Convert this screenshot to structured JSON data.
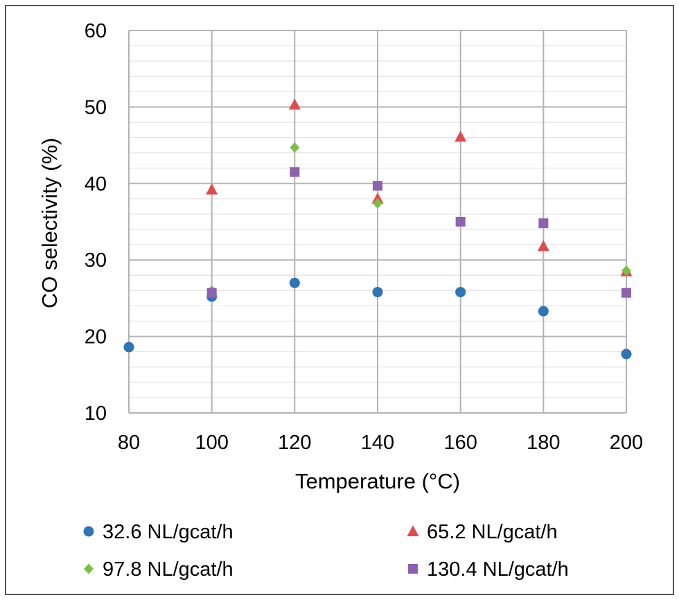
{
  "chart_data": {
    "type": "scatter",
    "title": "",
    "xlabel": "Temperature (°C)",
    "ylabel": "CO selectivity (%)",
    "xlim": [
      80,
      200
    ],
    "ylim": [
      10,
      60
    ],
    "xticks": [
      80,
      100,
      120,
      140,
      160,
      180,
      200
    ],
    "yticks": [
      10,
      20,
      30,
      40,
      50,
      60
    ],
    "x_minor_step": 20,
    "y_minor_step": 2,
    "grid": true,
    "legend_position": "bottom",
    "series": [
      {
        "name": "32.6 NL/gcat/h",
        "marker": "circle",
        "color": "#2E75B6",
        "points": [
          [
            80,
            18.6
          ],
          [
            100,
            25.2
          ],
          [
            120,
            27.0
          ],
          [
            140,
            25.8
          ],
          [
            160,
            25.8
          ],
          [
            180,
            23.3
          ],
          [
            200,
            17.7
          ]
        ]
      },
      {
        "name": "65.2 NL/gcat/h",
        "marker": "triangle",
        "color": "#E04B4B",
        "points": [
          [
            100,
            39.2
          ],
          [
            120,
            50.3
          ],
          [
            140,
            38.0
          ],
          [
            160,
            46.1
          ],
          [
            180,
            31.8
          ],
          [
            200,
            28.5
          ]
        ]
      },
      {
        "name": "97.8 NL/gcat/h",
        "marker": "diamond",
        "color": "#7AC143",
        "points": [
          [
            100,
            26.0
          ],
          [
            120,
            44.7
          ],
          [
            140,
            37.4
          ],
          [
            200,
            28.6
          ]
        ]
      },
      {
        "name": "130.4 NL/gcat/h",
        "marker": "square",
        "color": "#8E60B0",
        "points": [
          [
            100,
            25.7
          ],
          [
            120,
            41.5
          ],
          [
            140,
            39.7
          ],
          [
            160,
            35.0
          ],
          [
            180,
            34.8
          ],
          [
            200,
            25.7
          ]
        ]
      }
    ]
  }
}
